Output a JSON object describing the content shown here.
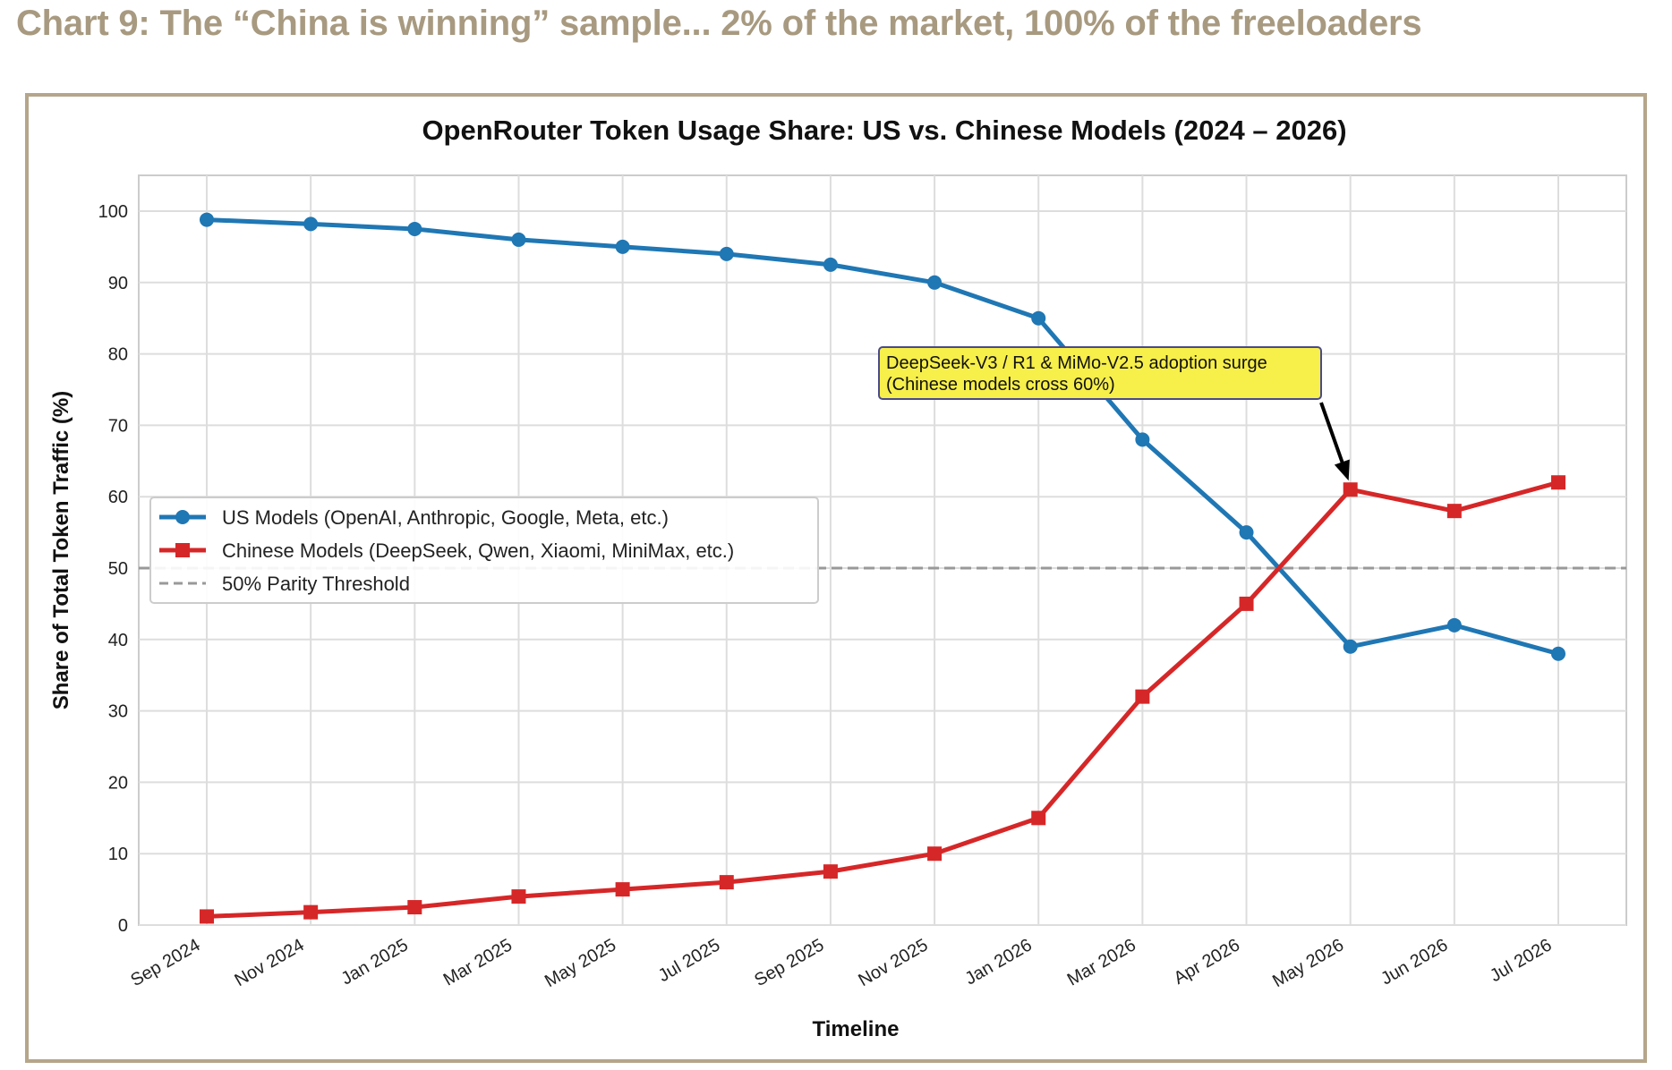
{
  "header": {
    "title": "Chart 9: The “China is winning” sample... 2% of the market, 100% of the freeloaders"
  },
  "chart_data": {
    "type": "line",
    "title": "OpenRouter Token Usage Share: US vs. Chinese Models (2024 – 2026)",
    "xlabel": "Timeline",
    "ylabel": "Share of Total Token Traffic (%)",
    "ylim": [
      0,
      100
    ],
    "yticks": [
      0,
      10,
      20,
      30,
      40,
      50,
      60,
      70,
      80,
      90,
      100
    ],
    "grid": true,
    "legend_position": "center-left",
    "categories": [
      "Sep 2024",
      "Nov 2024",
      "Jan 2025",
      "Mar 2025",
      "May 2025",
      "Jul 2025",
      "Sep 2025",
      "Nov 2025",
      "Jan 2026",
      "Mar 2026",
      "Apr 2026",
      "May 2026",
      "Jun 2026",
      "Jul 2026"
    ],
    "series": [
      {
        "name": "US Models (OpenAI, Anthropic, Google, Meta, etc.)",
        "color": "#1f77b4",
        "marker": "circle",
        "values": [
          98.8,
          98.2,
          97.5,
          96.0,
          95.0,
          94.0,
          92.5,
          90.0,
          85.0,
          68.0,
          55.0,
          39.0,
          42.0,
          38.0
        ]
      },
      {
        "name": "Chinese Models (DeepSeek, Qwen, Xiaomi, MiniMax, etc.)",
        "color": "#d62728",
        "marker": "square",
        "values": [
          1.2,
          1.8,
          2.5,
          4.0,
          5.0,
          6.0,
          7.5,
          10.0,
          15.0,
          32.0,
          45.0,
          61.0,
          58.0,
          62.0
        ]
      }
    ],
    "reference_line": {
      "name": "50% Parity Threshold",
      "value": 50,
      "color": "#999999",
      "style": "dashed"
    },
    "annotation": {
      "lines": [
        "DeepSeek-V3 / R1 & MiMo-V2.5 adoption surge",
        "(Chinese models cross 60%)"
      ],
      "target_category": "May 2026",
      "target_value": 61,
      "background": "#f7ef4a",
      "border": "#4a4a8a"
    }
  }
}
